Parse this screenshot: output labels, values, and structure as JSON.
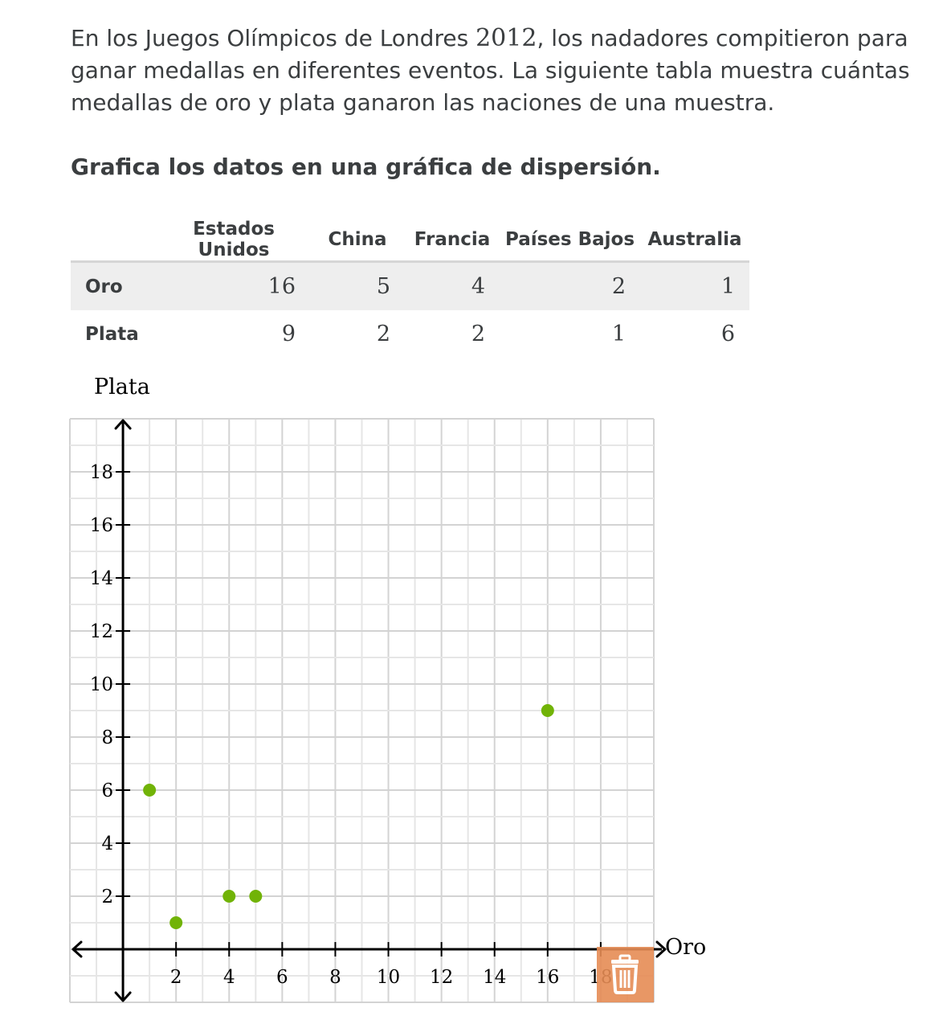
{
  "prompt": {
    "part1": "En los Juegos Olímpicos de Londres ",
    "year": "2012",
    "part2": ", los nadadores compitieron para ganar medallas en diferentes eventos. La siguiente tabla muestra cuántas medallas de oro y plata ganaron las naciones de una muestra."
  },
  "instruction": "Grafica los datos en una gráfica de dispersión.",
  "table": {
    "columns": [
      "Estados Unidos",
      "China",
      "Francia",
      "Países Bajos",
      "Australia"
    ],
    "rows": [
      {
        "label": "Oro",
        "values": [
          "16",
          "5",
          "4",
          "2",
          "1"
        ]
      },
      {
        "label": "Plata",
        "values": [
          "9",
          "2",
          "2",
          "1",
          "6"
        ]
      }
    ]
  },
  "chart_data": {
    "type": "scatter",
    "xlabel": "Oro",
    "ylabel": "Plata",
    "xlim": [
      -2,
      20
    ],
    "ylim": [
      -2,
      20
    ],
    "x_ticks": [
      2,
      4,
      6,
      8,
      10,
      12,
      14,
      16,
      18
    ],
    "y_ticks": [
      2,
      4,
      6,
      8,
      10,
      12,
      14,
      16,
      18
    ],
    "x_tick_labels": [
      "2",
      "4",
      "6",
      "8",
      "10",
      "12",
      "14",
      "16",
      "18"
    ],
    "y_tick_labels": [
      "2",
      "4",
      "6",
      "8",
      "10",
      "12",
      "14",
      "16",
      "18"
    ],
    "grid": true,
    "points": [
      {
        "x": 16,
        "y": 9
      },
      {
        "x": 5,
        "y": 2
      },
      {
        "x": 4,
        "y": 2
      },
      {
        "x": 2,
        "y": 1
      },
      {
        "x": 1,
        "y": 6
      }
    ],
    "point_color": "#71b307",
    "trash_color": "#e68c55"
  },
  "icons": {
    "delete": "trash-icon"
  }
}
